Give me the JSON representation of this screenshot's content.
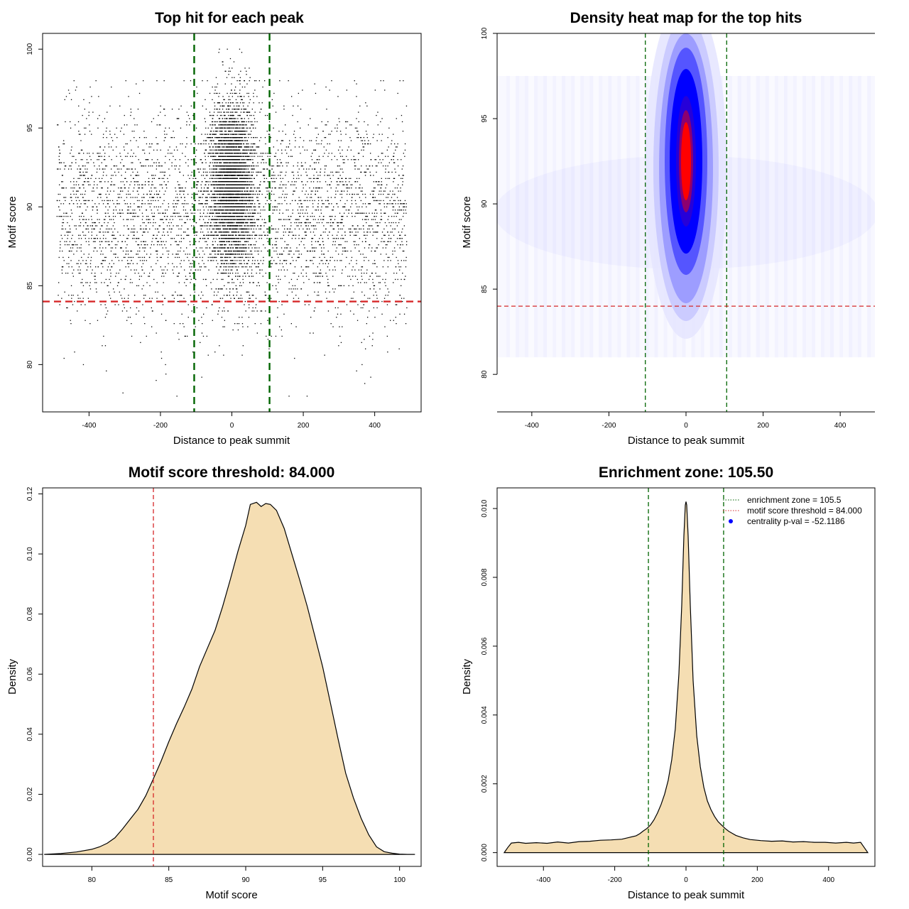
{
  "chart_data": [
    {
      "id": "scatter",
      "type": "scatter",
      "title": "Top hit for each peak",
      "xlabel": "Distance to peak summit",
      "ylabel": "Motif score",
      "xlim": [
        -530,
        530
      ],
      "ylim": [
        77,
        101
      ],
      "xticks": [
        -400,
        -200,
        0,
        200,
        400
      ],
      "yticks": [
        80,
        85,
        90,
        95,
        100
      ],
      "point_distribution": {
        "uniform_background": {
          "x_range": [
            -490,
            490
          ],
          "score_center": 89.5,
          "score_sd": 3.3,
          "score_range": [
            78,
            98
          ]
        },
        "central_cluster": {
          "x_center": 0,
          "x_sd": 30,
          "score_center": 91.5,
          "score_sd": 2.6,
          "score_range": [
            78.5,
            100
          ]
        }
      },
      "hlines": [
        {
          "value": 84.0,
          "color": "#d62728",
          "style": "dashed"
        }
      ],
      "vlines": [
        {
          "value": -105.5,
          "color": "#006400",
          "style": "dashed"
        },
        {
          "value": 105.5,
          "color": "#006400",
          "style": "dashed"
        }
      ]
    },
    {
      "id": "heatmap",
      "type": "heatmap",
      "title": "Density heat map for the top hits",
      "xlabel": "Distance to peak summit",
      "ylabel": "Motif score",
      "xlim": [
        -490,
        490
      ],
      "ylim": [
        77.8,
        100
      ],
      "xticks": [
        -400,
        -200,
        0,
        200,
        400
      ],
      "yticks": [
        80,
        85,
        90,
        95,
        100
      ],
      "hotspot": {
        "x": 0,
        "score": 92.5
      },
      "colors": {
        "low": "#ffffff",
        "mid": "#0000ff",
        "high": "#ff0000"
      },
      "hlines": [
        {
          "value": 84.0,
          "color": "#d62728",
          "style": "dashed"
        }
      ],
      "vlines": [
        {
          "value": -105.5,
          "color": "#006400",
          "style": "dashed"
        },
        {
          "value": 105.5,
          "color": "#006400",
          "style": "dashed"
        }
      ]
    },
    {
      "id": "score_density",
      "type": "area",
      "title": "Motif score threshold: 84.000",
      "xlabel": "Motif score",
      "ylabel": "Density",
      "xlim": [
        76.8,
        101.4
      ],
      "ylim": [
        -0.004,
        0.122
      ],
      "xticks": [
        80,
        85,
        90,
        95,
        100
      ],
      "yticks": [
        "0.00",
        "0.02",
        "0.04",
        "0.06",
        "0.08",
        "0.10",
        "0.12"
      ],
      "fill": "#f5deb3",
      "x": [
        76.9,
        78,
        79,
        80,
        80.5,
        81,
        81.5,
        82,
        82.5,
        83,
        83.5,
        84,
        84.5,
        85,
        85.5,
        86,
        86.5,
        87,
        87.5,
        88,
        88.5,
        89,
        89.5,
        90,
        90.3,
        90.7,
        91,
        91.3,
        91.6,
        92,
        92.5,
        93,
        93.5,
        94,
        94.5,
        95,
        95.5,
        96,
        96.5,
        97,
        97.5,
        98,
        98.5,
        99,
        99.5,
        100,
        100.5,
        101
      ],
      "y": [
        0.0,
        0.0003,
        0.0008,
        0.0017,
        0.0025,
        0.0037,
        0.0055,
        0.0085,
        0.0118,
        0.015,
        0.0195,
        0.0252,
        0.031,
        0.0375,
        0.0435,
        0.049,
        0.055,
        0.0625,
        0.0685,
        0.0745,
        0.0825,
        0.0915,
        0.101,
        0.1095,
        0.1165,
        0.1172,
        0.1158,
        0.1168,
        0.1165,
        0.1145,
        0.1085,
        0.1,
        0.0915,
        0.0825,
        0.0725,
        0.0625,
        0.0505,
        0.0385,
        0.027,
        0.0188,
        0.012,
        0.0065,
        0.0025,
        0.0009,
        0.0004,
        0.0001,
        0.0,
        0.0
      ],
      "vlines": [
        {
          "value": 84.0,
          "color": "#d62728",
          "style": "dashed"
        }
      ]
    },
    {
      "id": "distance_density",
      "type": "area",
      "title": "Enrichment zone: 105.50",
      "xlabel": "Distance to peak summit",
      "ylabel": "Density",
      "xlim": [
        -530,
        530
      ],
      "ylim": [
        -0.0004,
        0.0106
      ],
      "xticks": [
        -400,
        -200,
        0,
        200,
        400
      ],
      "yticks": [
        "0.000",
        "0.002",
        "0.004",
        "0.006",
        "0.008",
        "0.010"
      ],
      "fill": "#f5deb3",
      "x": [
        -510,
        -500,
        -490,
        -470,
        -450,
        -420,
        -390,
        -360,
        -330,
        -300,
        -270,
        -240,
        -210,
        -180,
        -160,
        -140,
        -130,
        -120,
        -110,
        -100,
        -90,
        -80,
        -70,
        -60,
        -50,
        -40,
        -30,
        -20,
        -12,
        -6,
        -2,
        0,
        2,
        6,
        12,
        20,
        30,
        40,
        50,
        60,
        70,
        80,
        90,
        100,
        110,
        120,
        130,
        140,
        160,
        180,
        210,
        240,
        270,
        300,
        330,
        360,
        390,
        420,
        450,
        470,
        490,
        500,
        510
      ],
      "y": [
        0.0,
        0.00015,
        0.00028,
        0.0003,
        0.00027,
        0.00029,
        0.00027,
        0.00031,
        0.00028,
        0.00032,
        0.00033,
        0.00036,
        0.00037,
        0.00039,
        0.00044,
        0.00049,
        0.00055,
        0.00063,
        0.0007,
        0.0008,
        0.00095,
        0.00115,
        0.0014,
        0.0017,
        0.0021,
        0.0027,
        0.0036,
        0.0052,
        0.0072,
        0.0092,
        0.0101,
        0.0102,
        0.0101,
        0.0092,
        0.0072,
        0.005,
        0.0034,
        0.0025,
        0.0019,
        0.0015,
        0.00125,
        0.00105,
        0.0009,
        0.0008,
        0.0007,
        0.00062,
        0.00056,
        0.0005,
        0.00043,
        0.00038,
        0.00035,
        0.00033,
        0.00034,
        0.00031,
        0.00032,
        0.0003,
        0.0003,
        0.00028,
        0.0003,
        0.00028,
        0.0003,
        0.00015,
        0.0
      ],
      "vlines": [
        {
          "value": -105.5,
          "color": "#006400",
          "style": "dashed"
        },
        {
          "value": 105.5,
          "color": "#006400",
          "style": "dashed"
        }
      ],
      "legend": {
        "position": "top-right",
        "entries": [
          {
            "label": "enrichment zone = 105.5",
            "color": "#006400",
            "symbol": "dotted-line"
          },
          {
            "label": "motif score threshold = 84.000",
            "color": "#d62728",
            "symbol": "dotted-line"
          },
          {
            "label": "centrality p-val = -52.1186",
            "color": "#0000ff",
            "symbol": "dot"
          }
        ]
      }
    }
  ]
}
